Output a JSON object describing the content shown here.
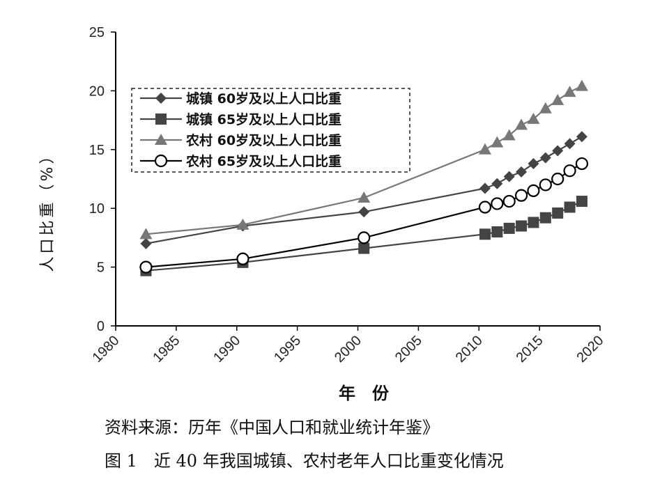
{
  "chart_data": {
    "type": "line",
    "xlabel": "年　份",
    "ylabel": "人口比重（%）",
    "xlim": [
      1980,
      2020
    ],
    "ylim": [
      0,
      25
    ],
    "xticks": [
      1980,
      1985,
      1990,
      1995,
      2000,
      2005,
      2010,
      2015,
      2020
    ],
    "yticks": [
      0,
      5,
      10,
      15,
      20,
      25
    ],
    "grid": false,
    "legend_position": "top-left",
    "series": [
      {
        "name": "城镇 60岁及以上人口比重",
        "marker": "diamond",
        "color": "#444444",
        "x": [
          1982.5,
          1990.5,
          2000.5,
          2010.5,
          2011.5,
          2012.5,
          2013.5,
          2014.5,
          2015.5,
          2016.5,
          2017.5,
          2018.5
        ],
        "y": [
          7.0,
          8.5,
          9.7,
          11.7,
          12.1,
          12.7,
          13.1,
          13.8,
          14.3,
          14.9,
          15.5,
          16.1
        ]
      },
      {
        "name": "城镇 65岁及以上人口比重",
        "marker": "square",
        "color": "#444444",
        "x": [
          1982.5,
          1990.5,
          2000.5,
          2010.5,
          2011.5,
          2012.5,
          2013.5,
          2014.5,
          2015.5,
          2016.5,
          2017.5,
          2018.5
        ],
        "y": [
          4.7,
          5.4,
          6.6,
          7.8,
          8.0,
          8.3,
          8.5,
          8.8,
          9.2,
          9.6,
          10.1,
          10.6
        ]
      },
      {
        "name": "农村 60岁及以上人口比重",
        "marker": "triangle",
        "color": "#777777",
        "x": [
          1982.5,
          1990.5,
          2000.5,
          2010.5,
          2011.5,
          2012.5,
          2013.5,
          2014.5,
          2015.5,
          2016.5,
          2017.5,
          2018.5
        ],
        "y": [
          7.8,
          8.6,
          10.9,
          15.0,
          15.6,
          16.2,
          17.1,
          17.6,
          18.5,
          19.2,
          19.9,
          20.4
        ]
      },
      {
        "name": "农村 65岁及以上人口比重",
        "marker": "circle-open",
        "color": "#000000",
        "x": [
          1982.5,
          1990.5,
          2000.5,
          2010.5,
          2011.5,
          2012.5,
          2013.5,
          2014.5,
          2015.5,
          2016.5,
          2017.5,
          2018.5
        ],
        "y": [
          5.0,
          5.7,
          7.5,
          10.1,
          10.4,
          10.6,
          11.1,
          11.5,
          12.0,
          12.5,
          13.2,
          13.8
        ]
      }
    ]
  },
  "source_text": "资料来源：历年《中国人口和就业统计年鉴》",
  "figure_caption": "图 1　近 40 年我国城镇、农村老年人口比重变化情况"
}
